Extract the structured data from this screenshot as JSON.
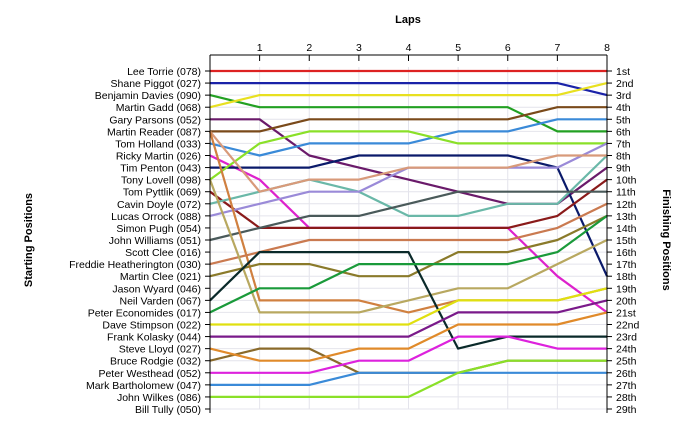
{
  "chart_data": {
    "type": "line",
    "title": "Laps",
    "ylabel": "Starting Positions",
    "y2label": "Finishing Positions",
    "x": [
      0,
      1,
      2,
      3,
      4,
      5,
      6,
      7,
      8
    ],
    "x_tick_labels": [
      "1",
      "2",
      "3",
      "4",
      "5",
      "6",
      "7",
      "8"
    ],
    "ylim": [
      1,
      29
    ],
    "y_inverted": true,
    "grid": true,
    "finish_labels": [
      "1st",
      "2nd",
      "3rd",
      "4th",
      "5th",
      "6th",
      "7th",
      "8th",
      "9th",
      "10th",
      "11th",
      "12th",
      "13th",
      "14th",
      "15th",
      "16th",
      "17th",
      "18th",
      "19th",
      "20th",
      "21st",
      "22nd",
      "23rd",
      "24th",
      "25th",
      "26th",
      "27th",
      "28th",
      "29th"
    ],
    "series": [
      {
        "name": "Lee Torrie (078)",
        "color": "#dd2222",
        "positions": [
          1,
          1,
          1,
          1,
          1,
          1,
          1,
          1,
          1
        ]
      },
      {
        "name": "Shane Piggot (027)",
        "color": "#1a22a8",
        "positions": [
          2,
          2,
          2,
          2,
          2,
          2,
          2,
          2,
          3
        ]
      },
      {
        "name": "Benjamin Davies (090)",
        "color": "#22a022",
        "positions": [
          3,
          4,
          4,
          4,
          4,
          4,
          4,
          6,
          6
        ]
      },
      {
        "name": "Martin Gadd (068)",
        "color": "#e8e020",
        "positions": [
          4,
          3,
          3,
          3,
          3,
          3,
          3,
          3,
          2
        ]
      },
      {
        "name": "Gary Parsons (052)",
        "color": "#6a1a6a",
        "positions": [
          5,
          5,
          8,
          9,
          10,
          11,
          12,
          12,
          9
        ]
      },
      {
        "name": "Martin Reader (087)",
        "color": "#7a4a1a",
        "positions": [
          6,
          6,
          5,
          5,
          5,
          5,
          5,
          4,
          4
        ]
      },
      {
        "name": "Tom Holland (033)",
        "color": "#3a8ad8",
        "positions": [
          7,
          8,
          7,
          7,
          7,
          6,
          6,
          5,
          5
        ]
      },
      {
        "name": "Ricky Martin (026)",
        "color": "#dd22cc",
        "positions": [
          8,
          10,
          14,
          14,
          14,
          14,
          14,
          18,
          21
        ]
      },
      {
        "name": "Tim Penton (043)",
        "color": "#0a1a6a",
        "positions": [
          9,
          9,
          9,
          8,
          8,
          8,
          8,
          9,
          18
        ]
      },
      {
        "name": "Tony Lovell (098)",
        "color": "#8ae028",
        "positions": [
          10,
          7,
          6,
          6,
          6,
          7,
          7,
          7,
          7
        ]
      },
      {
        "name": "Tom Pyttlik (069)",
        "color": "#8a1a1a",
        "positions": [
          11,
          14,
          14,
          14,
          14,
          14,
          14,
          13,
          10
        ]
      },
      {
        "name": "Cavin Doyle (072)",
        "color": "#6ab8a8",
        "positions": [
          12,
          11,
          10,
          11,
          13,
          13,
          12,
          12,
          8
        ]
      },
      {
        "name": "Lucas Orrock (088)",
        "color": "#9a8ad8",
        "positions": [
          13,
          12,
          11,
          11,
          9,
          9,
          9,
          9,
          7
        ]
      },
      {
        "name": "Simon Pugh (054)",
        "color": "#d89a7a",
        "positions": [
          6,
          11,
          10,
          10,
          9,
          9,
          9,
          8,
          8
        ]
      },
      {
        "name": "John Williams (051)",
        "color": "#4a5a5a",
        "positions": [
          15,
          14,
          13,
          13,
          12,
          11,
          11,
          11,
          11
        ]
      },
      {
        "name": "Scott Clee (016)",
        "color": "#d08040",
        "positions": [
          6,
          20,
          20,
          20,
          21,
          20,
          20,
          20,
          19
        ]
      },
      {
        "name": "Freddie Heatherington (030)",
        "color": "#ca7a50",
        "positions": [
          17,
          16,
          15,
          15,
          15,
          15,
          15,
          14,
          12
        ]
      },
      {
        "name": "Martin Clee (021)",
        "color": "#8a7a2a",
        "positions": [
          18,
          17,
          17,
          18,
          18,
          16,
          16,
          15,
          13
        ]
      },
      {
        "name": "Jason Wyard (046)",
        "color": "#b8a860",
        "positions": [
          10,
          21,
          21,
          21,
          20,
          19,
          19,
          17,
          15
        ]
      },
      {
        "name": "Neil Varden (067)",
        "color": "#0a2a2a",
        "positions": [
          20,
          16,
          16,
          16,
          16,
          24,
          23,
          23,
          23
        ]
      },
      {
        "name": "Peter Economides (017)",
        "color": "#1a9a3a",
        "positions": [
          21,
          19,
          19,
          17,
          17,
          17,
          17,
          16,
          13
        ]
      },
      {
        "name": "Dave Stimpson (022)",
        "color": "#e0e010",
        "positions": [
          22,
          22,
          22,
          22,
          22,
          20,
          20,
          20,
          19
        ]
      },
      {
        "name": "Frank Kolasky (044)",
        "color": "#7a1a8a",
        "positions": [
          23,
          23,
          23,
          23,
          23,
          21,
          21,
          21,
          20
        ]
      },
      {
        "name": "Steve Lloyd (027)",
        "color": "#8a6a2a",
        "positions": [
          25,
          24,
          24,
          26,
          26,
          26,
          25,
          25,
          25
        ]
      },
      {
        "name": "Bruce Rodgie (032)",
        "color": "#e08a2a",
        "positions": [
          24,
          25,
          25,
          24,
          24,
          22,
          22,
          22,
          21
        ]
      },
      {
        "name": "Peter Westhead (052)",
        "color": "#dd22dd",
        "positions": [
          26,
          26,
          26,
          25,
          25,
          23,
          23,
          24,
          24
        ]
      },
      {
        "name": "Mark Bartholomew (047)",
        "color": "#3a8ad8",
        "positions": [
          27,
          27,
          27,
          26,
          26,
          26,
          26,
          26,
          26
        ]
      },
      {
        "name": "John Wilkes (086)",
        "color": "#8ae028",
        "positions": [
          28,
          28,
          28,
          28,
          28,
          26,
          25,
          25,
          25
        ]
      }
    ],
    "non_finishers": [
      "Bill Tully (050)"
    ]
  }
}
